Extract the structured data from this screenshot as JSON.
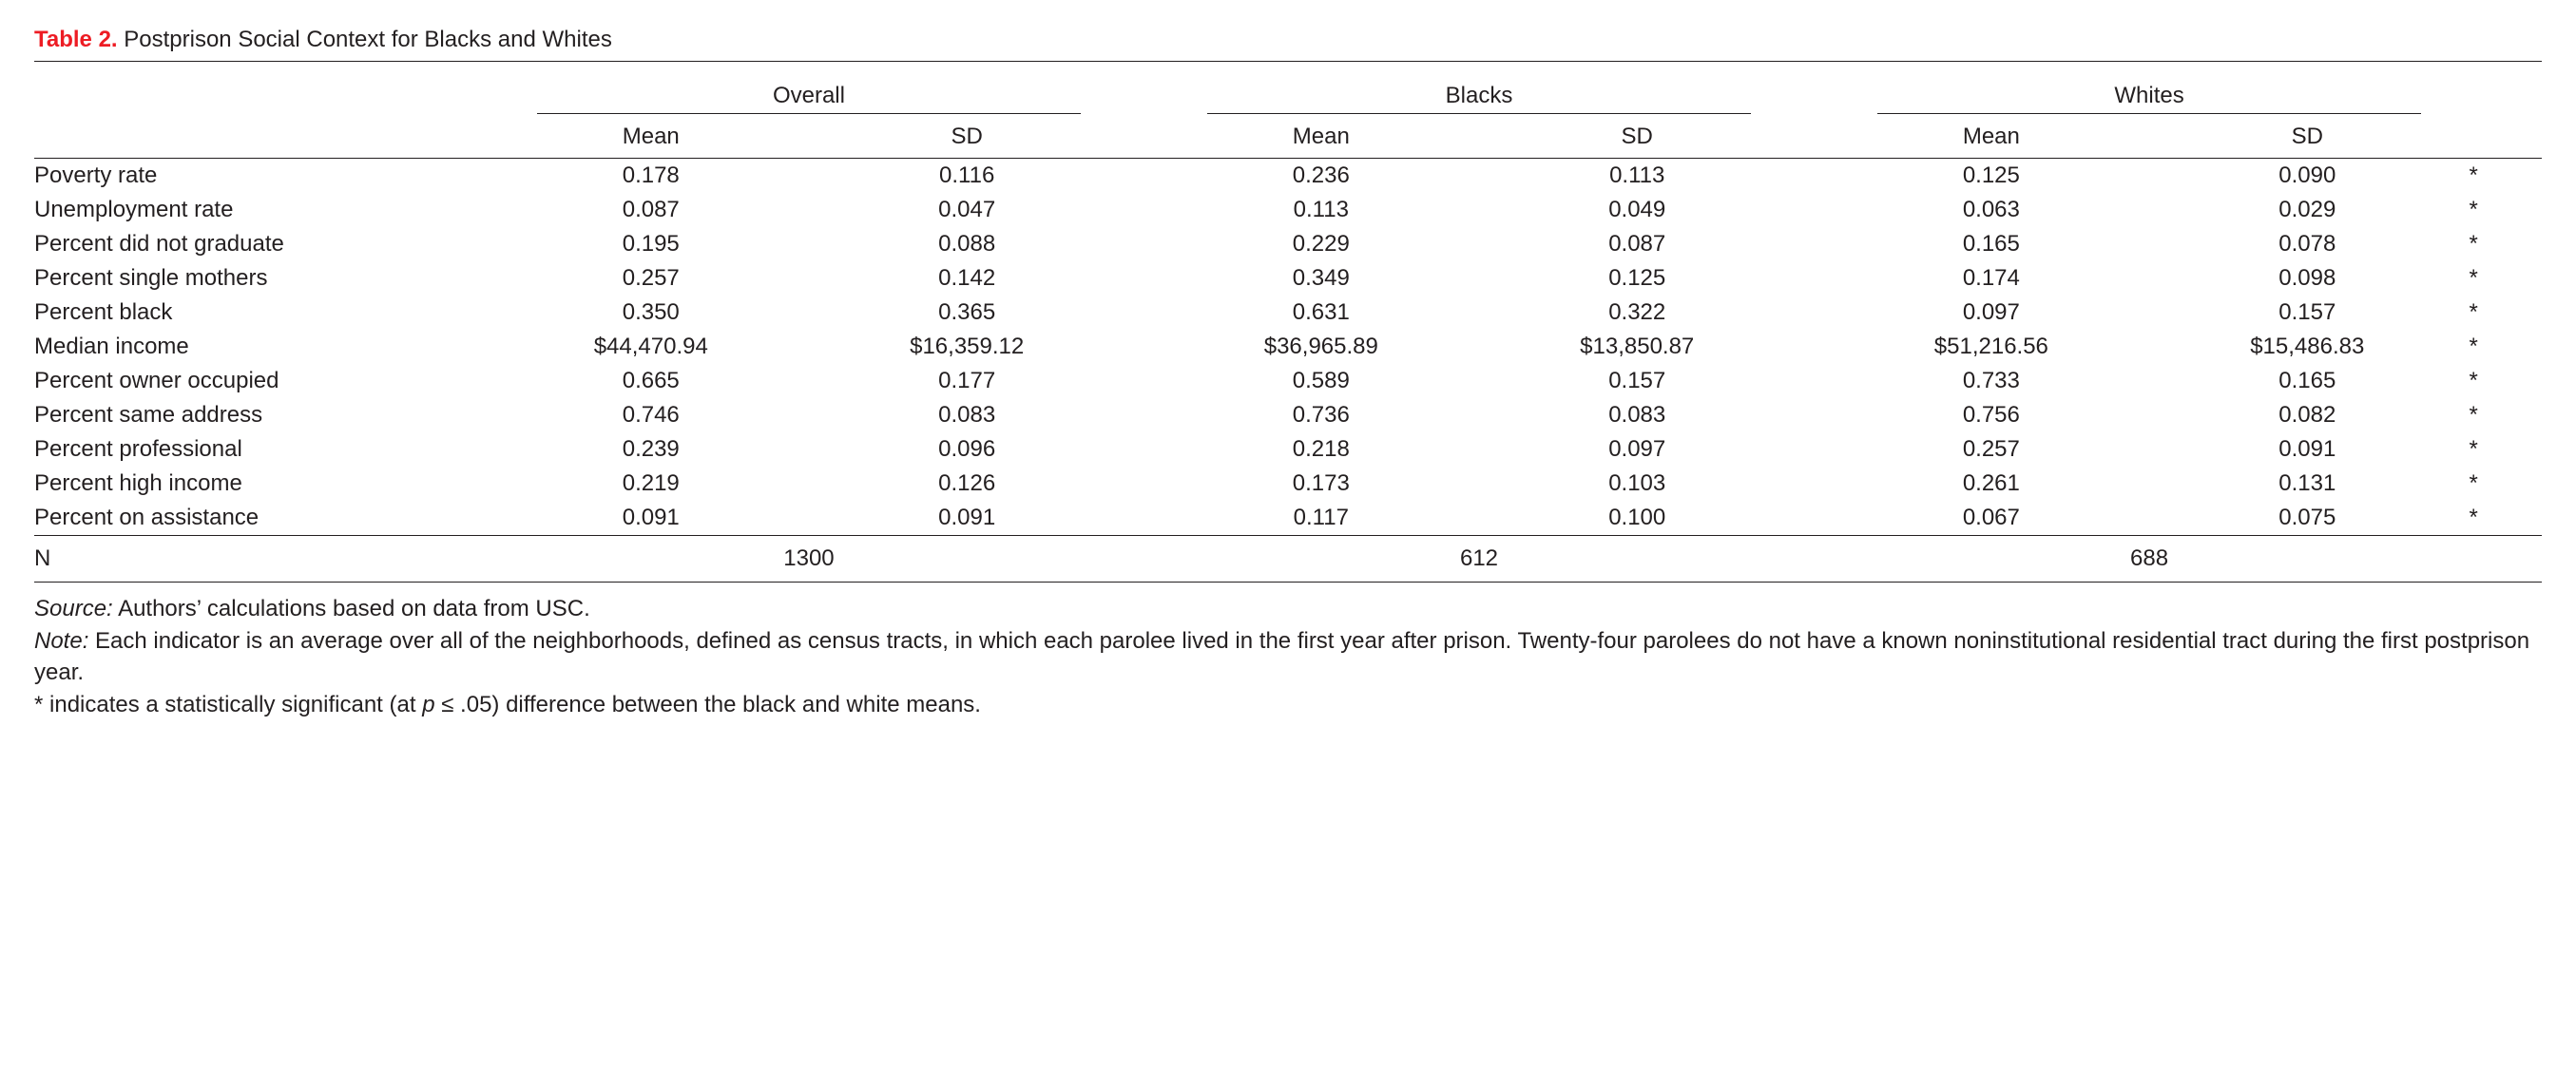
{
  "colors": {
    "text": "#231f20",
    "accent_red": "#ed1c24",
    "rule": "#231f20",
    "background": "#ffffff"
  },
  "typography": {
    "base_fontsize_pt": 18,
    "font_family": "Helvetica Neue, Helvetica, Arial, sans-serif",
    "title_label_weight": 700,
    "body_weight": 400
  },
  "table": {
    "type": "table",
    "label": "Table 2.",
    "title": "Postprison Social Context for Blacks and Whites",
    "groups": [
      "Overall",
      "Blacks",
      "Whites"
    ],
    "subcolumns": [
      "Mean",
      "SD"
    ],
    "column_widths_pct": {
      "rowlabel": 18,
      "value": 12.4,
      "group_gap": 1.5,
      "sig": 3
    },
    "rows": [
      {
        "label": "Poverty rate",
        "overall_mean": "0.178",
        "overall_sd": "0.116",
        "blacks_mean": "0.236",
        "blacks_sd": "0.113",
        "whites_mean": "0.125",
        "whites_sd": "0.090",
        "sig": "*"
      },
      {
        "label": "Unemployment rate",
        "overall_mean": "0.087",
        "overall_sd": "0.047",
        "blacks_mean": "0.113",
        "blacks_sd": "0.049",
        "whites_mean": "0.063",
        "whites_sd": "0.029",
        "sig": "*"
      },
      {
        "label": "Percent did not graduate",
        "overall_mean": "0.195",
        "overall_sd": "0.088",
        "blacks_mean": "0.229",
        "blacks_sd": "0.087",
        "whites_mean": "0.165",
        "whites_sd": "0.078",
        "sig": "*"
      },
      {
        "label": "Percent single mothers",
        "overall_mean": "0.257",
        "overall_sd": "0.142",
        "blacks_mean": "0.349",
        "blacks_sd": "0.125",
        "whites_mean": "0.174",
        "whites_sd": "0.098",
        "sig": "*"
      },
      {
        "label": "Percent black",
        "overall_mean": "0.350",
        "overall_sd": "0.365",
        "blacks_mean": "0.631",
        "blacks_sd": "0.322",
        "whites_mean": "0.097",
        "whites_sd": "0.157",
        "sig": "*"
      },
      {
        "label": "Median income",
        "overall_mean": "$44,470.94",
        "overall_sd": "$16,359.12",
        "blacks_mean": "$36,965.89",
        "blacks_sd": "$13,850.87",
        "whites_mean": "$51,216.56",
        "whites_sd": "$15,486.83",
        "sig": "*"
      },
      {
        "label": "Percent owner occupied",
        "overall_mean": "0.665",
        "overall_sd": "0.177",
        "blacks_mean": "0.589",
        "blacks_sd": "0.157",
        "whites_mean": "0.733",
        "whites_sd": "0.165",
        "sig": "*"
      },
      {
        "label": "Percent same address",
        "overall_mean": "0.746",
        "overall_sd": "0.083",
        "blacks_mean": "0.736",
        "blacks_sd": "0.083",
        "whites_mean": "0.756",
        "whites_sd": "0.082",
        "sig": "*"
      },
      {
        "label": "Percent professional",
        "overall_mean": "0.239",
        "overall_sd": "0.096",
        "blacks_mean": "0.218",
        "blacks_sd": "0.097",
        "whites_mean": "0.257",
        "whites_sd": "0.091",
        "sig": "*"
      },
      {
        "label": "Percent high income",
        "overall_mean": "0.219",
        "overall_sd": "0.126",
        "blacks_mean": "0.173",
        "blacks_sd": "0.103",
        "whites_mean": "0.261",
        "whites_sd": "0.131",
        "sig": "*"
      },
      {
        "label": "Percent on assistance",
        "overall_mean": "0.091",
        "overall_sd": "0.091",
        "blacks_mean": "0.117",
        "blacks_sd": "0.100",
        "whites_mean": "0.067",
        "whites_sd": "0.075",
        "sig": "*"
      }
    ],
    "n_row": {
      "label": "N",
      "overall": "1300",
      "blacks": "612",
      "whites": "688"
    }
  },
  "notes": {
    "source_label": "Source:",
    "source_text": " Authors’ calculations based on data from USC.",
    "note_label": "Note:",
    "note_text": " Each indicator is an average over all of the neighborhoods, defined as census tracts, in which each parolee lived in the first year after prison. Twenty-four parolees do not have a known noninstitutional residential tract during the first postprison year.",
    "sig_note_prefix": "* indicates a statistically significant (at ",
    "sig_note_ital": "p",
    "sig_note_suffix": " ≤ .05) difference between the black and white means."
  }
}
